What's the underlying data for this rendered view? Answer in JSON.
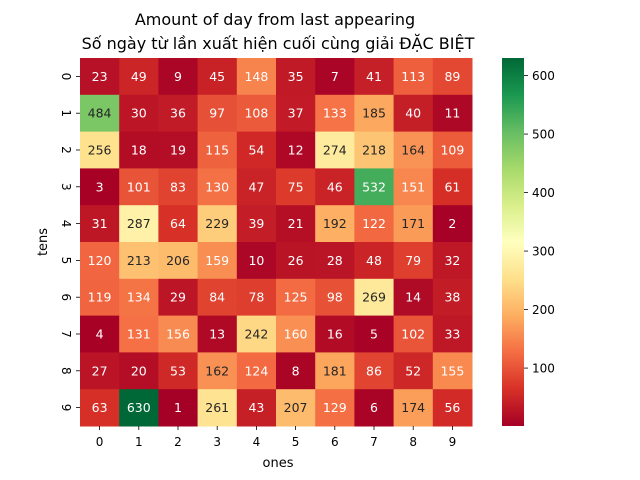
{
  "chart_data": {
    "type": "heatmap",
    "title": "Amount of day from last appearing",
    "subtitle": "Số ngày từ lần xuất hiện cuối cùng giải ĐẶC BIỆT",
    "xlabel": "ones",
    "ylabel": "tens",
    "x_categories": [
      "0",
      "1",
      "2",
      "3",
      "4",
      "5",
      "6",
      "7",
      "8",
      "9"
    ],
    "y_categories": [
      "0",
      "1",
      "2",
      "3",
      "4",
      "5",
      "6",
      "7",
      "8",
      "9"
    ],
    "values": [
      [
        23,
        49,
        9,
        45,
        148,
        35,
        7,
        41,
        113,
        89
      ],
      [
        484,
        30,
        36,
        97,
        108,
        37,
        133,
        185,
        40,
        11
      ],
      [
        256,
        18,
        19,
        115,
        54,
        12,
        274,
        218,
        164,
        109
      ],
      [
        3,
        101,
        83,
        130,
        47,
        75,
        46,
        532,
        151,
        61
      ],
      [
        31,
        287,
        64,
        229,
        39,
        21,
        192,
        122,
        171,
        2
      ],
      [
        120,
        213,
        206,
        159,
        10,
        26,
        28,
        48,
        79,
        32
      ],
      [
        119,
        134,
        29,
        84,
        78,
        125,
        98,
        269,
        14,
        38
      ],
      [
        4,
        131,
        156,
        13,
        242,
        160,
        16,
        5,
        102,
        33
      ],
      [
        27,
        20,
        53,
        162,
        124,
        8,
        181,
        86,
        52,
        155
      ],
      [
        63,
        630,
        1,
        261,
        43,
        207,
        129,
        6,
        174,
        56
      ]
    ],
    "colormap": "RdYlGn",
    "colorbar": {
      "vmin": 1,
      "vmax": 630,
      "ticks": [
        "100",
        "200",
        "300",
        "400",
        "500",
        "600"
      ],
      "position": "right"
    },
    "annotations": true,
    "grid": false
  }
}
